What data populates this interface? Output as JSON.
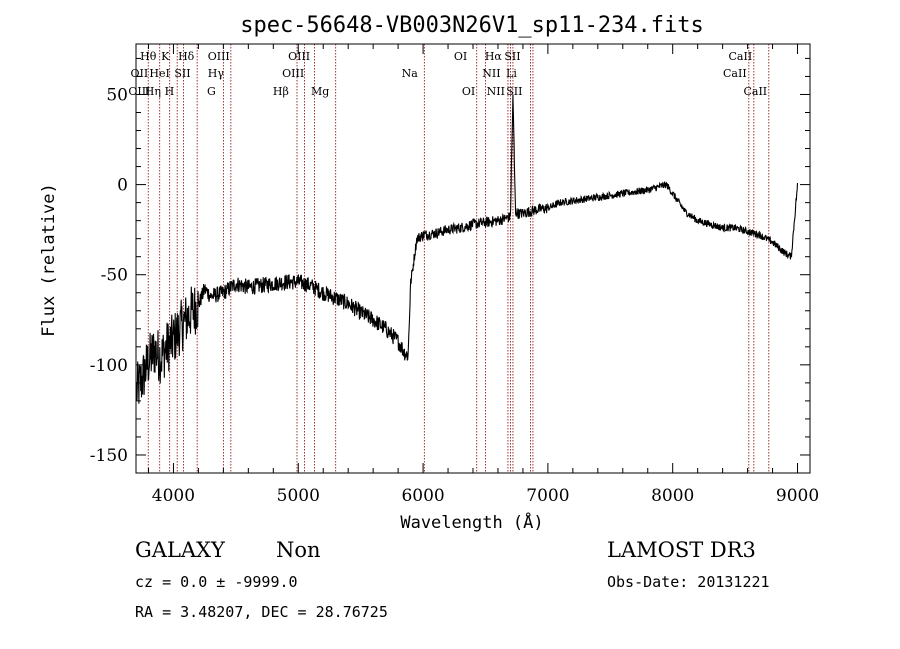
{
  "chart_data": {
    "type": "line",
    "title": "spec-56648-VB003N26V1_sp11-234.fits",
    "xlabel": "Wavelength (Å)",
    "ylabel": "Flux (relative)",
    "xlim": [
      3700,
      9100
    ],
    "ylim": [
      -160,
      78
    ],
    "x_ticks": [
      4000,
      5000,
      6000,
      7000,
      8000,
      9000
    ],
    "y_ticks": [
      -150,
      -100,
      -50,
      0,
      50
    ],
    "spectrum_anchor_points": {
      "wavelength": [
        3700,
        3750,
        3800,
        3850,
        3900,
        3950,
        4000,
        4050,
        4100,
        4150,
        4200,
        4250,
        4300,
        4400,
        4500,
        4600,
        4700,
        4800,
        4900,
        5000,
        5100,
        5200,
        5300,
        5400,
        5500,
        5600,
        5700,
        5800,
        5850,
        5880,
        5900,
        5920,
        5950,
        6000,
        6100,
        6200,
        6300,
        6400,
        6500,
        6600,
        6650,
        6700,
        6720,
        6740,
        6760,
        6800,
        6900,
        7000,
        7100,
        7200,
        7300,
        7400,
        7500,
        7600,
        7700,
        7800,
        7900,
        7950,
        8000,
        8050,
        8100,
        8200,
        8300,
        8400,
        8500,
        8600,
        8700,
        8800,
        8900,
        8950,
        9000
      ],
      "flux": [
        -115,
        -108,
        -98,
        -92,
        -96,
        -90,
        -86,
        -80,
        -75,
        -70,
        -67,
        -58,
        -62,
        -60,
        -55,
        -57,
        -56,
        -55,
        -54,
        -54,
        -56,
        -60,
        -63,
        -66,
        -71,
        -75,
        -80,
        -87,
        -93,
        -95,
        -55,
        -45,
        -30,
        -28,
        -27,
        -25,
        -24,
        -22,
        -21,
        -20,
        -19,
        -18,
        50,
        -15,
        -16,
        -16,
        -14,
        -13,
        -10,
        -9,
        -8,
        -7,
        -6,
        -5,
        -4,
        -3,
        -1,
        0,
        -5,
        -10,
        -15,
        -20,
        -22,
        -24,
        -24,
        -26,
        -28,
        -32,
        -38,
        -40,
        0
      ]
    },
    "spectral_lines": [
      {
        "name": "Hθ",
        "wavelength": 3798,
        "row": 1
      },
      {
        "name": "OII",
        "wavelength": 3727,
        "row": 2
      },
      {
        "name": "OIII",
        "wavelength": 3727,
        "row": 3
      },
      {
        "name": "K",
        "wavelength": 3934,
        "row": 1
      },
      {
        "name": "HeI",
        "wavelength": 3889,
        "row": 2
      },
      {
        "name": "Hη",
        "wavelength": 3835,
        "row": 3
      },
      {
        "name": "Hδ",
        "wavelength": 4102,
        "row": 1
      },
      {
        "name": "SII",
        "wavelength": 4072,
        "row": 2
      },
      {
        "name": "H",
        "wavelength": 3968,
        "row": 3
      },
      {
        "name": "OIII",
        "wavelength": 4363,
        "row": 1
      },
      {
        "name": "Hγ",
        "wavelength": 4340,
        "row": 2
      },
      {
        "name": "G",
        "wavelength": 4304,
        "row": 3
      },
      {
        "name": "OIII",
        "wavelength": 5007,
        "row": 1
      },
      {
        "name": "OIII",
        "wavelength": 4959,
        "row": 2
      },
      {
        "name": "Hβ",
        "wavelength": 4861,
        "row": 3
      },
      {
        "name": "Mg",
        "wavelength": 5175,
        "row": 3
      },
      {
        "name": "Na",
        "wavelength": 5893,
        "row": 2
      },
      {
        "name": "OI",
        "wavelength": 6300,
        "row": 1
      },
      {
        "name": "OI",
        "wavelength": 6364,
        "row": 3
      },
      {
        "name": "Hα",
        "wavelength": 6563,
        "row": 1
      },
      {
        "name": "SII",
        "wavelength": 6716,
        "row": 1
      },
      {
        "name": "NII",
        "wavelength": 6548,
        "row": 2
      },
      {
        "name": "Li",
        "wavelength": 6708,
        "row": 2
      },
      {
        "name": "NII",
        "wavelength": 6583,
        "row": 3
      },
      {
        "name": "SII",
        "wavelength": 6731,
        "row": 3
      },
      {
        "name": "CaII",
        "wavelength": 8542,
        "row": 1
      },
      {
        "name": "CaII",
        "wavelength": 8498,
        "row": 2
      },
      {
        "name": "CaII",
        "wavelength": 8662,
        "row": 3
      }
    ],
    "line_marker_wavelengths": [
      3798,
      3890,
      3970,
      4030,
      4080,
      4190,
      4400,
      4460,
      4990,
      5050,
      5130,
      5300,
      6010,
      6430,
      6500,
      6680,
      6700,
      6720,
      6860,
      6880,
      8610,
      8650,
      8770
    ]
  },
  "info": {
    "object_class": "GALAXY",
    "subclass": "Non",
    "survey": "LAMOST DR3",
    "cz_line": "cz = 0.0 ± -9999.0",
    "obs_date": "Obs-Date: 20131221",
    "coords": "RA =   3.48207, DEC =  28.76725"
  },
  "colors": {
    "spectrum": "#000000",
    "marker": "#8b0000",
    "axes": "#000000",
    "background": "#ffffff"
  }
}
